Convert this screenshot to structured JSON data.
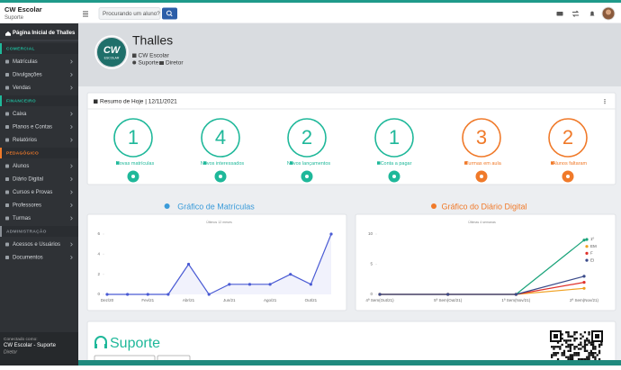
{
  "header": {
    "brand": "CW Escolar",
    "brand_sub": "Suporte",
    "search_placeholder": "Procurando um aluno?"
  },
  "sidebar": {
    "home": "Página Inicial de Thalles",
    "groups": [
      {
        "title": "COMERCIAL",
        "color": "#1fb89a",
        "items": [
          "Matrículas",
          "Divulgações",
          "Vendas"
        ]
      },
      {
        "title": "FINANCEIRO",
        "color": "#1fb89a",
        "items": [
          "Caixa",
          "Planos e Contas",
          "Relatórios"
        ]
      },
      {
        "title": "PEDAGÓGICO",
        "color": "#f07a2a",
        "items": [
          "Alunos",
          "Diário Digital",
          "Cursos e Provas",
          "Professores",
          "Turmas"
        ]
      },
      {
        "title": "ADMINISTRAÇÃO",
        "color": "#8a8f96",
        "items": [
          "Acessos e Usuários",
          "Documentos"
        ]
      }
    ],
    "footer": {
      "label": "Conectado como:",
      "user": "CW Escolar - Suporte",
      "role": "Diretor"
    }
  },
  "profile": {
    "logo": "CW",
    "logo_sub": "ESCOLAR",
    "name": "Thalles",
    "school": "CW Escolar",
    "dept": "Suporte",
    "role": "Diretor"
  },
  "summary": {
    "title": "Resumo de Hoje | 12/11/2021",
    "cards": [
      {
        "value": 1,
        "label": "Novas matrículas",
        "color": "#1fb89a"
      },
      {
        "value": 4,
        "label": "Novos interessados",
        "color": "#1fb89a"
      },
      {
        "value": 2,
        "label": "Novos lançamentos",
        "color": "#1fb89a"
      },
      {
        "value": 1,
        "label": "Conta a pagar",
        "color": "#1fb89a"
      },
      {
        "value": 3,
        "label": "Turmas em aula",
        "color": "#f07a2a"
      },
      {
        "value": 2,
        "label": "Alunos faltaram",
        "color": "#f07a2a"
      }
    ]
  },
  "enrollment_chart": {
    "type": "line",
    "title": "Gráfico de Matrículas",
    "subtitle": "Últimos 12 meses",
    "title_color": "#3b9bd9",
    "categories": [
      "Dez/20",
      null,
      "Fev/21",
      null,
      "Abr/21",
      null,
      "Jun/21",
      null,
      "Ago/21",
      null,
      "Out/21",
      null
    ],
    "values": [
      0,
      0,
      0,
      0,
      3,
      0,
      1,
      1,
      1,
      2,
      1,
      6
    ],
    "color": "#4a5bd4",
    "ylim": [
      0,
      6
    ],
    "yticks": [
      0,
      2,
      4,
      6
    ]
  },
  "diary_chart": {
    "type": "line",
    "title": "Gráfico do Diário Digital",
    "subtitle": "Últimas 4 semanas",
    "title_color": "#f07a2a",
    "categories": [
      "4ª Sem(Out/21)",
      "5ª Sem(Out/21)",
      "1ª Sem(Nov/21)",
      "2ª Sem(Nov/21)"
    ],
    "series": [
      {
        "name": "1º",
        "color": "#1aa37a",
        "values": [
          0,
          0,
          0,
          9
        ]
      },
      {
        "name": "EM",
        "color": "#f0a020",
        "values": [
          0,
          0,
          0,
          1
        ]
      },
      {
        "name": "F",
        "color": "#e0302a",
        "values": [
          0,
          0,
          0,
          2
        ]
      },
      {
        "name": "EI",
        "color": "#3a4a8a",
        "values": [
          0,
          0,
          0,
          3
        ]
      }
    ],
    "ylim": [
      0,
      10
    ],
    "yticks": [
      0,
      5,
      10
    ]
  },
  "support": {
    "title": "Suporte"
  }
}
